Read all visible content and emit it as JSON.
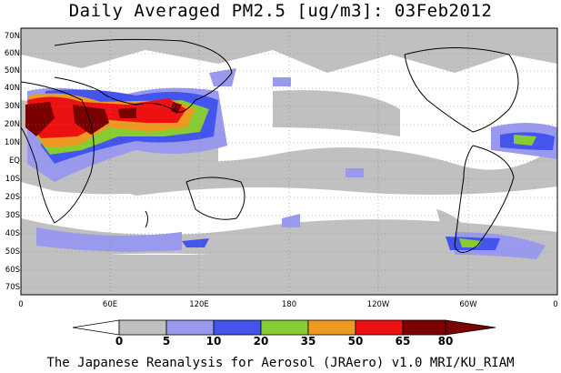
{
  "title": "Daily Averaged PM2.5 [ug/m3]: 03Feb2012",
  "credit": "The Japanese Reanalysis for Aerosol (JRAero) v1.0 MRI/KU_RIAM",
  "lat_labels": [
    "70N",
    "60N",
    "50N",
    "40N",
    "30N",
    "20N",
    "10N",
    "EQ",
    "10S",
    "20S",
    "30S",
    "40S",
    "50S",
    "60S",
    "70S"
  ],
  "lon_labels": [
    "0",
    "60E",
    "120E",
    "180",
    "120W",
    "60W",
    "0"
  ],
  "colorbar": {
    "levels": [
      "0",
      "5",
      "10",
      "20",
      "35",
      "50",
      "65",
      "80"
    ],
    "colors": [
      "#ffffff",
      "#c0c0c0",
      "#9999ee",
      "#4455ee",
      "#88cc33",
      "#ee9922",
      "#ee1111",
      "#7a0000"
    ]
  }
}
